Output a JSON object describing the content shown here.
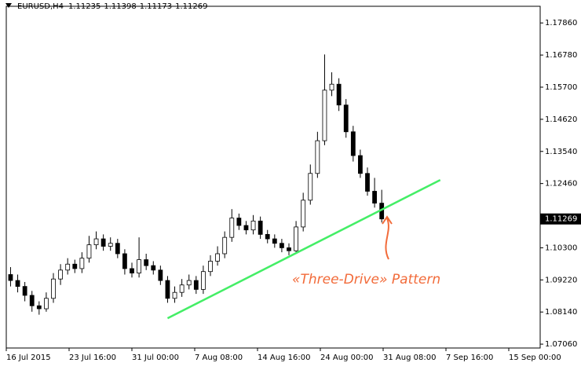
{
  "chart_data": {
    "type": "candlestick",
    "header": {
      "symbol": "EURUSD,H4",
      "values": [
        1.11235,
        1.11398,
        1.11173,
        1.11269
      ]
    },
    "last_price": 1.11269,
    "annotation": "«Three-Drive» Pattern",
    "xlim": [
      0,
      374
    ],
    "xticks": [
      {
        "value": 0,
        "label": "16 Jul 2015"
      },
      {
        "value": 44,
        "label": "23 Jul 16:00"
      },
      {
        "value": 88,
        "label": "31 Jul 00:00"
      },
      {
        "value": 132,
        "label": "7 Aug 08:00"
      },
      {
        "value": 176,
        "label": "14 Aug 16:00"
      },
      {
        "value": 220,
        "label": "24 Aug 00:00"
      },
      {
        "value": 264,
        "label": "31 Aug 08:00"
      },
      {
        "value": 308,
        "label": "7 Sep 16:00"
      },
      {
        "value": 352,
        "label": "15 Sep 00:00"
      }
    ],
    "ylim": [
      1.0693,
      1.1842
    ],
    "yticks": [
      {
        "value": 1.1786,
        "label": "1.17860"
      },
      {
        "value": 1.1678,
        "label": "1.16780"
      },
      {
        "value": 1.157,
        "label": "1.15700"
      },
      {
        "value": 1.1462,
        "label": "1.14620"
      },
      {
        "value": 1.1354,
        "label": "1.13540"
      },
      {
        "value": 1.1246,
        "label": "1.12460"
      },
      {
        "value": 1.103,
        "label": "1.10300"
      },
      {
        "value": 1.0922,
        "label": "1.09220"
      },
      {
        "value": 1.0814,
        "label": "1.08140"
      },
      {
        "value": 1.0706,
        "label": "1.07060"
      }
    ],
    "x": [
      3,
      8,
      13,
      18,
      23,
      28,
      33,
      38,
      43,
      48,
      53,
      58,
      63,
      68,
      73,
      78,
      83,
      88,
      93,
      98,
      103,
      108,
      113,
      118,
      123,
      128,
      133,
      138,
      143,
      148,
      153,
      158,
      163,
      168,
      173,
      178,
      183,
      188,
      193,
      198,
      203,
      208,
      213,
      218,
      223,
      228,
      233,
      238,
      243,
      248,
      253,
      258,
      263
    ],
    "open": [
      1.094,
      1.092,
      1.09,
      1.087,
      1.0835,
      1.0825,
      1.086,
      1.0925,
      1.0955,
      1.0975,
      1.096,
      1.0995,
      1.104,
      1.106,
      1.1035,
      1.1045,
      1.101,
      1.096,
      1.0945,
      1.099,
      1.097,
      1.0955,
      1.092,
      1.086,
      1.088,
      1.0905,
      1.092,
      1.089,
      1.095,
      1.0985,
      1.101,
      1.1065,
      1.113,
      1.1105,
      1.109,
      1.112,
      1.1075,
      1.106,
      1.1045,
      1.103,
      1.102,
      1.11,
      1.119,
      1.128,
      1.139,
      1.156,
      1.158,
      1.151,
      1.142,
      1.134,
      1.128,
      1.122,
      1.118
    ],
    "high": [
      1.0965,
      1.094,
      1.0915,
      1.0885,
      1.085,
      1.088,
      1.0945,
      1.0975,
      1.0995,
      1.099,
      1.1015,
      1.107,
      1.1085,
      1.1075,
      1.1065,
      1.106,
      1.1025,
      1.098,
      1.1065,
      1.101,
      1.0985,
      1.097,
      1.0935,
      1.09,
      1.0925,
      1.094,
      1.0935,
      1.097,
      1.1005,
      1.1035,
      1.1085,
      1.116,
      1.1145,
      1.112,
      1.114,
      1.1135,
      1.109,
      1.1075,
      1.106,
      1.1045,
      1.112,
      1.1215,
      1.131,
      1.142,
      1.168,
      1.162,
      1.16,
      1.153,
      1.144,
      1.136,
      1.13,
      1.1265,
      1.1225
    ],
    "low": [
      1.09,
      1.088,
      1.085,
      1.0815,
      1.0805,
      1.0815,
      1.0845,
      1.0905,
      1.094,
      1.0945,
      1.0945,
      1.098,
      1.1025,
      1.102,
      1.102,
      1.0995,
      1.094,
      1.093,
      1.093,
      1.0955,
      1.094,
      1.0905,
      1.0845,
      1.0845,
      1.0865,
      1.089,
      1.0875,
      1.0875,
      1.0935,
      1.097,
      1.0995,
      1.105,
      1.109,
      1.1075,
      1.1075,
      1.106,
      1.1045,
      1.103,
      1.1015,
      1.1005,
      1.101,
      1.1085,
      1.1175,
      1.1265,
      1.1375,
      1.154,
      1.149,
      1.14,
      1.132,
      1.1265,
      1.1205,
      1.1165,
      1.1115
    ],
    "close": [
      1.092,
      1.09,
      1.087,
      1.0835,
      1.0825,
      1.086,
      1.0925,
      1.0955,
      1.0975,
      1.096,
      1.0995,
      1.104,
      1.106,
      1.1035,
      1.1045,
      1.101,
      1.096,
      1.0945,
      1.099,
      1.097,
      1.0955,
      1.092,
      1.086,
      1.088,
      1.0905,
      1.092,
      1.089,
      1.095,
      1.0985,
      1.101,
      1.1065,
      1.113,
      1.1105,
      1.109,
      1.112,
      1.1075,
      1.106,
      1.1045,
      1.103,
      1.102,
      1.11,
      1.119,
      1.128,
      1.139,
      1.156,
      1.158,
      1.151,
      1.142,
      1.134,
      1.128,
      1.122,
      1.118,
      1.1127
    ],
    "up_color": "#ffffff",
    "down_color": "#000000",
    "wick_color": "#000000",
    "trendline": {
      "x": [
        113,
        304
      ],
      "y": [
        1.0793,
        1.1258
      ],
      "color": "#44ee66"
    }
  }
}
